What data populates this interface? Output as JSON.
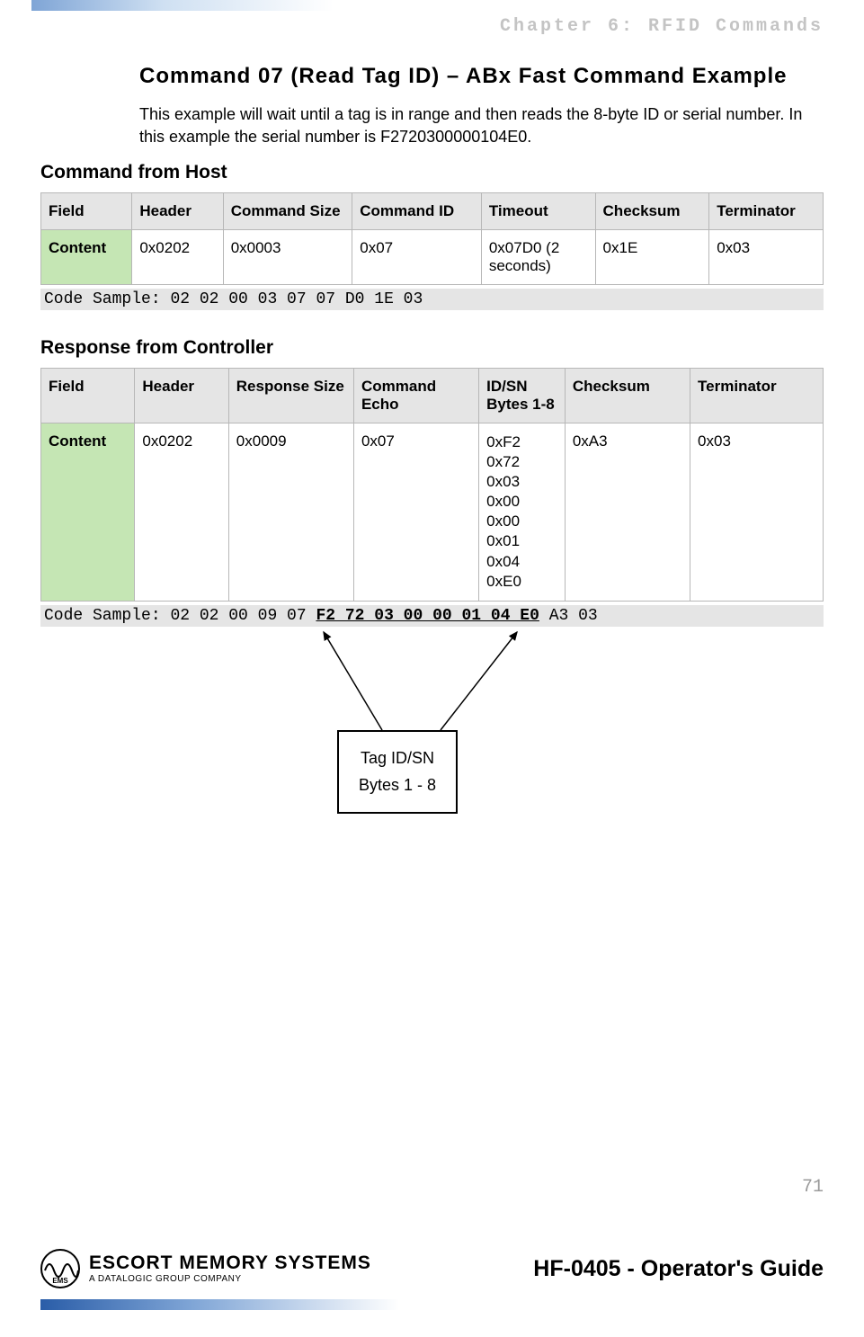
{
  "chapter_header": "Chapter 6: RFID Commands",
  "title": "Command 07 (Read Tag ID) – ABx Fast Command Example",
  "description": "This example will wait until a tag is in range and then reads the 8-byte ID or serial number. In this example the serial number is F2720300000104E0.",
  "host_section": "Command from Host",
  "host_table": {
    "headers": [
      "Field",
      "Header",
      "Command Size",
      "Command ID",
      "Timeout",
      "Checksum",
      "Terminator"
    ],
    "row_label": "Content",
    "cells": [
      "0x0202",
      "0x0003",
      "0x07",
      "0x07D0 (2 seconds)",
      "0x1E",
      "0x03"
    ]
  },
  "host_code_label": "Code Sample:",
  "host_code": "02 02 00 03 07 07 D0 1E 03",
  "resp_section": "Response from Controller",
  "resp_table": {
    "headers": [
      "Field",
      "Header",
      "Response Size",
      "Command Echo",
      "ID/SN Bytes 1-8",
      "Checksum",
      "Terminator"
    ],
    "row_label": "Content",
    "cells": [
      "0x0202",
      "0x0009",
      "0x07",
      "0xF2\n0x72\n0x03\n0x00\n0x00\n0x01\n0x04\n0xE0",
      "0xA3",
      "0x03"
    ]
  },
  "resp_code_label": "Code Sample:",
  "resp_code_pre": "02 02 00 09 07 ",
  "resp_code_bold": "F2 72 03 00 00 01 04 E0",
  "resp_code_post": " A3 03",
  "callout_line1": "Tag ID/SN",
  "callout_line2": "Bytes 1 - 8",
  "page_number": "71",
  "footer_title": "HF-0405 - Operator's Guide",
  "logo_main": "ESCORT MEMORY SYSTEMS",
  "logo_sub": "A DATALOGIC GROUP COMPANY",
  "logo_badge": "EMS",
  "colors": {
    "header_bg": "#e5e5e5",
    "content_bg": "#c5e6b4",
    "border": "#b7b7b7",
    "chapter_text": "#c4c4c4",
    "page_num": "#9a9a9a"
  }
}
